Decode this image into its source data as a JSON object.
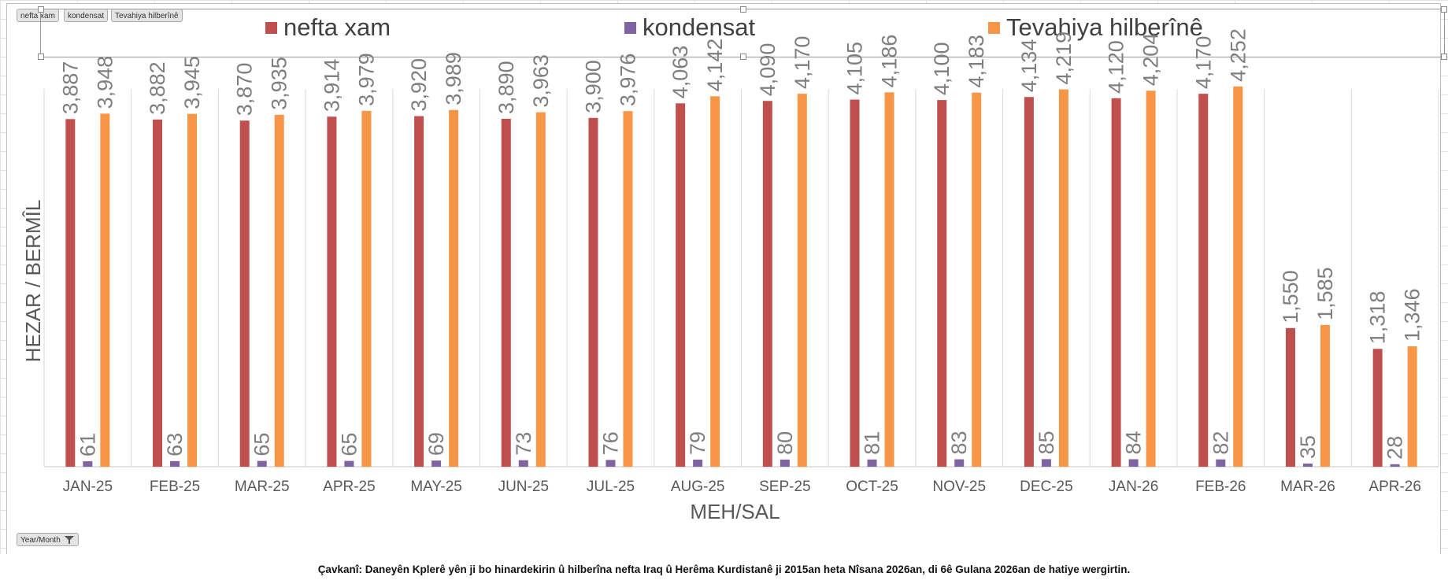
{
  "pivot": {
    "field_buttons": [
      "nefta xam",
      "kondensat",
      "Tevahiya hilberînê"
    ],
    "axis_field_button": "Year/Month"
  },
  "colors": {
    "nefta_xam": "#c0504d",
    "kondensat": "#8064a2",
    "total": "#f79646"
  },
  "icons": {
    "filter": "funnel-icon"
  },
  "chart_data": {
    "type": "bar",
    "title": "",
    "xlabel": "MEH/SAL",
    "ylabel": "HEZAR /  BERMÎL",
    "legend_position": "top",
    "grid": "vertical-category-lines",
    "ylim": [
      0,
      4400
    ],
    "categories": [
      "JAN-25",
      "FEB-25",
      "MAR-25",
      "APR-25",
      "MAY-25",
      "JUN-25",
      "JUL-25",
      "AUG-25",
      "SEP-25",
      "OCT-25",
      "NOV-25",
      "DEC-25",
      "JAN-26",
      "FEB-26",
      "MAR-26",
      "APR-26"
    ],
    "series": [
      {
        "name": "nefta xam",
        "values": [
          3887,
          3882,
          3870,
          3914,
          3920,
          3890,
          3900,
          4063,
          4090,
          4105,
          4100,
          4134,
          4120,
          4170,
          1550,
          1318
        ],
        "labels": [
          "3,887",
          "3,882",
          "3,870",
          "3,914",
          "3,920",
          "3,890",
          "3,900",
          "4,063",
          "4,090",
          "4,105",
          "4,100",
          "4,134",
          "4,120",
          "4,170",
          "1,550",
          "1,318"
        ]
      },
      {
        "name": "kondensat",
        "values": [
          61,
          63,
          65,
          65,
          69,
          73,
          76,
          79,
          80,
          81,
          83,
          85,
          84,
          82,
          35,
          28
        ],
        "labels": [
          "61",
          "63",
          "65",
          "65",
          "69",
          "73",
          "76",
          "79",
          "80",
          "81",
          "83",
          "85",
          "84",
          "82",
          "35",
          "28"
        ]
      },
      {
        "name": "Tevahiya hilberînê",
        "values": [
          3948,
          3945,
          3935,
          3979,
          3989,
          3963,
          3976,
          4142,
          4170,
          4186,
          4183,
          4219,
          4204,
          4252,
          1585,
          1346
        ],
        "labels": [
          "3,948",
          "3,945",
          "3,935",
          "3,979",
          "3,989",
          "3,963",
          "3,976",
          "4,142",
          "4,170",
          "4,186",
          "4,183",
          "4,219",
          "4,204",
          "4,252",
          "1,585",
          "1,346"
        ]
      }
    ]
  },
  "source_note": "Çavkanî: Daneyên Kplerê yên ji bo hinardekirin û hilberîna nefta Iraq û Herêma Kurdistanê ji 2015an heta Nîsana 2026an, di 6ê Gulana 2026an de hatiye wergirtin."
}
